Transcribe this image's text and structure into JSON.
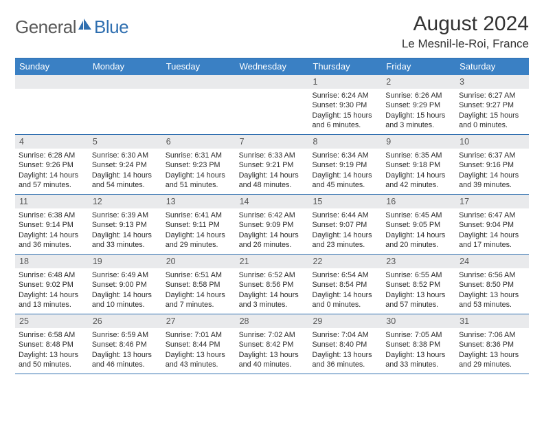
{
  "brand": {
    "text_general": "General",
    "text_blue": "Blue"
  },
  "title": "August 2024",
  "location": "Le Mesnil-le-Roi, France",
  "colors": {
    "header_bg": "#3a80c4",
    "border": "#2f6fb0",
    "daynum_bg": "#e9eaec",
    "text": "#2b2b2b",
    "logo_gray": "#5a5a5a",
    "logo_blue": "#2f6fb0"
  },
  "dow": [
    "Sunday",
    "Monday",
    "Tuesday",
    "Wednesday",
    "Thursday",
    "Friday",
    "Saturday"
  ],
  "weeks": [
    [
      {
        "n": "",
        "sr": "",
        "ss": "",
        "dl": ""
      },
      {
        "n": "",
        "sr": "",
        "ss": "",
        "dl": ""
      },
      {
        "n": "",
        "sr": "",
        "ss": "",
        "dl": ""
      },
      {
        "n": "",
        "sr": "",
        "ss": "",
        "dl": ""
      },
      {
        "n": "1",
        "sr": "Sunrise: 6:24 AM",
        "ss": "Sunset: 9:30 PM",
        "dl": "Daylight: 15 hours and 6 minutes."
      },
      {
        "n": "2",
        "sr": "Sunrise: 6:26 AM",
        "ss": "Sunset: 9:29 PM",
        "dl": "Daylight: 15 hours and 3 minutes."
      },
      {
        "n": "3",
        "sr": "Sunrise: 6:27 AM",
        "ss": "Sunset: 9:27 PM",
        "dl": "Daylight: 15 hours and 0 minutes."
      }
    ],
    [
      {
        "n": "4",
        "sr": "Sunrise: 6:28 AM",
        "ss": "Sunset: 9:26 PM",
        "dl": "Daylight: 14 hours and 57 minutes."
      },
      {
        "n": "5",
        "sr": "Sunrise: 6:30 AM",
        "ss": "Sunset: 9:24 PM",
        "dl": "Daylight: 14 hours and 54 minutes."
      },
      {
        "n": "6",
        "sr": "Sunrise: 6:31 AM",
        "ss": "Sunset: 9:23 PM",
        "dl": "Daylight: 14 hours and 51 minutes."
      },
      {
        "n": "7",
        "sr": "Sunrise: 6:33 AM",
        "ss": "Sunset: 9:21 PM",
        "dl": "Daylight: 14 hours and 48 minutes."
      },
      {
        "n": "8",
        "sr": "Sunrise: 6:34 AM",
        "ss": "Sunset: 9:19 PM",
        "dl": "Daylight: 14 hours and 45 minutes."
      },
      {
        "n": "9",
        "sr": "Sunrise: 6:35 AM",
        "ss": "Sunset: 9:18 PM",
        "dl": "Daylight: 14 hours and 42 minutes."
      },
      {
        "n": "10",
        "sr": "Sunrise: 6:37 AM",
        "ss": "Sunset: 9:16 PM",
        "dl": "Daylight: 14 hours and 39 minutes."
      }
    ],
    [
      {
        "n": "11",
        "sr": "Sunrise: 6:38 AM",
        "ss": "Sunset: 9:14 PM",
        "dl": "Daylight: 14 hours and 36 minutes."
      },
      {
        "n": "12",
        "sr": "Sunrise: 6:39 AM",
        "ss": "Sunset: 9:13 PM",
        "dl": "Daylight: 14 hours and 33 minutes."
      },
      {
        "n": "13",
        "sr": "Sunrise: 6:41 AM",
        "ss": "Sunset: 9:11 PM",
        "dl": "Daylight: 14 hours and 29 minutes."
      },
      {
        "n": "14",
        "sr": "Sunrise: 6:42 AM",
        "ss": "Sunset: 9:09 PM",
        "dl": "Daylight: 14 hours and 26 minutes."
      },
      {
        "n": "15",
        "sr": "Sunrise: 6:44 AM",
        "ss": "Sunset: 9:07 PM",
        "dl": "Daylight: 14 hours and 23 minutes."
      },
      {
        "n": "16",
        "sr": "Sunrise: 6:45 AM",
        "ss": "Sunset: 9:05 PM",
        "dl": "Daylight: 14 hours and 20 minutes."
      },
      {
        "n": "17",
        "sr": "Sunrise: 6:47 AM",
        "ss": "Sunset: 9:04 PM",
        "dl": "Daylight: 14 hours and 17 minutes."
      }
    ],
    [
      {
        "n": "18",
        "sr": "Sunrise: 6:48 AM",
        "ss": "Sunset: 9:02 PM",
        "dl": "Daylight: 14 hours and 13 minutes."
      },
      {
        "n": "19",
        "sr": "Sunrise: 6:49 AM",
        "ss": "Sunset: 9:00 PM",
        "dl": "Daylight: 14 hours and 10 minutes."
      },
      {
        "n": "20",
        "sr": "Sunrise: 6:51 AM",
        "ss": "Sunset: 8:58 PM",
        "dl": "Daylight: 14 hours and 7 minutes."
      },
      {
        "n": "21",
        "sr": "Sunrise: 6:52 AM",
        "ss": "Sunset: 8:56 PM",
        "dl": "Daylight: 14 hours and 3 minutes."
      },
      {
        "n": "22",
        "sr": "Sunrise: 6:54 AM",
        "ss": "Sunset: 8:54 PM",
        "dl": "Daylight: 14 hours and 0 minutes."
      },
      {
        "n": "23",
        "sr": "Sunrise: 6:55 AM",
        "ss": "Sunset: 8:52 PM",
        "dl": "Daylight: 13 hours and 57 minutes."
      },
      {
        "n": "24",
        "sr": "Sunrise: 6:56 AM",
        "ss": "Sunset: 8:50 PM",
        "dl": "Daylight: 13 hours and 53 minutes."
      }
    ],
    [
      {
        "n": "25",
        "sr": "Sunrise: 6:58 AM",
        "ss": "Sunset: 8:48 PM",
        "dl": "Daylight: 13 hours and 50 minutes."
      },
      {
        "n": "26",
        "sr": "Sunrise: 6:59 AM",
        "ss": "Sunset: 8:46 PM",
        "dl": "Daylight: 13 hours and 46 minutes."
      },
      {
        "n": "27",
        "sr": "Sunrise: 7:01 AM",
        "ss": "Sunset: 8:44 PM",
        "dl": "Daylight: 13 hours and 43 minutes."
      },
      {
        "n": "28",
        "sr": "Sunrise: 7:02 AM",
        "ss": "Sunset: 8:42 PM",
        "dl": "Daylight: 13 hours and 40 minutes."
      },
      {
        "n": "29",
        "sr": "Sunrise: 7:04 AM",
        "ss": "Sunset: 8:40 PM",
        "dl": "Daylight: 13 hours and 36 minutes."
      },
      {
        "n": "30",
        "sr": "Sunrise: 7:05 AM",
        "ss": "Sunset: 8:38 PM",
        "dl": "Daylight: 13 hours and 33 minutes."
      },
      {
        "n": "31",
        "sr": "Sunrise: 7:06 AM",
        "ss": "Sunset: 8:36 PM",
        "dl": "Daylight: 13 hours and 29 minutes."
      }
    ]
  ]
}
